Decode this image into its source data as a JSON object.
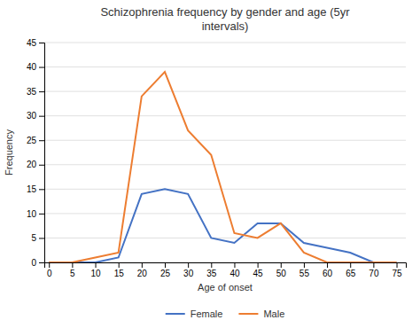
{
  "chart_data": {
    "type": "line",
    "title": "Schizophrenia frequency by gender and age (5yr\nintervals)",
    "xlabel": "Age of onset",
    "ylabel": "Frequency",
    "x": [
      0,
      5,
      10,
      15,
      20,
      25,
      30,
      35,
      40,
      45,
      50,
      55,
      60,
      65,
      70,
      75
    ],
    "series": [
      {
        "name": "Female",
        "color": "#4472c4",
        "values": [
          0,
          0,
          0,
          1,
          14,
          15,
          14,
          5,
          4,
          8,
          8,
          4,
          3,
          2,
          0,
          0
        ]
      },
      {
        "name": "Male",
        "color": "#ed7d31",
        "values": [
          0,
          0,
          1,
          2,
          34,
          39,
          27,
          22,
          6,
          5,
          8,
          2,
          0,
          0,
          0,
          0
        ]
      }
    ],
    "xlim": [
      -1,
      77
    ],
    "xticks": [
      0,
      5,
      10,
      15,
      20,
      25,
      30,
      35,
      40,
      45,
      50,
      55,
      60,
      65,
      70,
      75
    ],
    "ylim": [
      0,
      45
    ],
    "yticks": [
      0,
      5,
      10,
      15,
      20,
      25,
      30,
      35,
      40,
      45
    ],
    "grid": true,
    "legend": "bottom"
  }
}
